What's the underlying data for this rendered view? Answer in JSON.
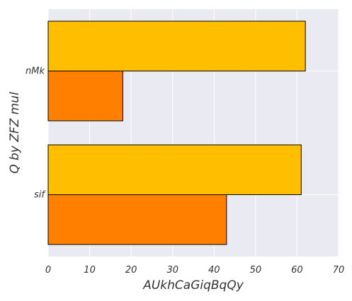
{
  "chart_data": {
    "type": "bar",
    "orientation": "horizontal",
    "categories": [
      "nMk",
      "sif"
    ],
    "series": [
      {
        "values": [
          62,
          61
        ],
        "color": "#FFBF00"
      },
      {
        "values": [
          18,
          43
        ],
        "color": "#FF7F00"
      }
    ],
    "xlabel": "AUkhCaGiqBqQy",
    "ylabel": "Q by ZFZ mul",
    "xlim": [
      0,
      70
    ],
    "xticks": [
      0,
      10,
      20,
      30,
      40,
      50,
      60,
      70
    ],
    "grid": true,
    "background": "#EAEAF2",
    "bar_edge_color": "#000000"
  }
}
